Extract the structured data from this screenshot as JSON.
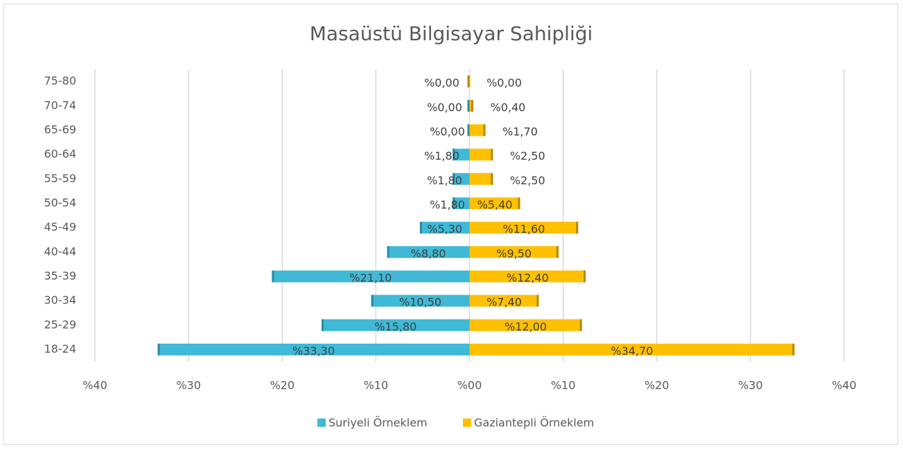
{
  "chart_data": {
    "type": "bar",
    "orientation": "horizontal",
    "title": "Masaüstü Bilgisayar Sahipliği",
    "categories": [
      "18-24",
      "25-29",
      "30-34",
      "35-39",
      "40-44",
      "45-49",
      "50-54",
      "55-59",
      "60-64",
      "65-69",
      "70-74",
      "75-80"
    ],
    "series": [
      {
        "name": "Suriyeli Örneklem",
        "color": "#3fb9d5",
        "values": [
          -33.3,
          -15.8,
          -10.5,
          -21.1,
          -8.8,
          -5.3,
          -1.8,
          -1.8,
          -1.8,
          0,
          0,
          0
        ],
        "value_labels": [
          "%33,30",
          "%15,80",
          "%10,50",
          "%21,10",
          "%8,80",
          "%5,30",
          "%1,80",
          "%1,80",
          "%1,80",
          "%0,00",
          "%0,00",
          "%0,00"
        ]
      },
      {
        "name": "Gaziantepli Örneklem",
        "color": "#ffc000",
        "values": [
          34.7,
          12.0,
          7.4,
          12.4,
          9.5,
          11.6,
          5.4,
          2.5,
          2.5,
          1.7,
          0.4,
          0
        ],
        "value_labels": [
          "%34,70",
          "%12,00",
          "%7,40",
          "%12,40",
          "%9,50",
          "%11,60",
          "%5,40",
          "%2,50",
          "%2,50",
          "%1,70",
          "%0,40",
          "%0,00"
        ]
      }
    ],
    "xlim": [
      -40,
      40
    ],
    "xticks": [
      {
        "value": -40,
        "label": "%40"
      },
      {
        "value": -30,
        "label": "%30"
      },
      {
        "value": -20,
        "label": "%20"
      },
      {
        "value": -10,
        "label": "%10"
      },
      {
        "value": 0,
        "label": "%00"
      },
      {
        "value": 10,
        "label": "%10"
      },
      {
        "value": 20,
        "label": "%20"
      },
      {
        "value": 30,
        "label": "%30"
      },
      {
        "value": 40,
        "label": "%40"
      }
    ],
    "grid": true,
    "legend": "bottom"
  }
}
